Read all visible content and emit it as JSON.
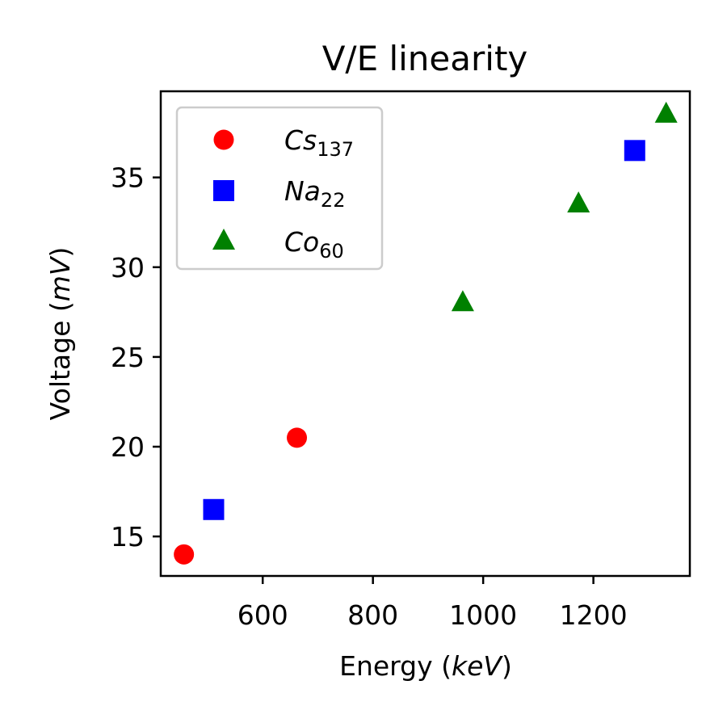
{
  "chart_data": {
    "type": "scatter",
    "title": "V/E linearity",
    "xlabel": {
      "prefix": "Energy (",
      "unit": "keV",
      "suffix": ")"
    },
    "ylabel": {
      "prefix": "Voltage (",
      "unit": "mV",
      "suffix": ")"
    },
    "xlim": [
      415,
      1375
    ],
    "ylim": [
      12.8,
      39.8
    ],
    "xticks": [
      600,
      800,
      1000,
      1200
    ],
    "xtick_labels": [
      "600",
      "800",
      "1000",
      "1200"
    ],
    "yticks": [
      15,
      20,
      25,
      30,
      35
    ],
    "ytick_labels": [
      "15",
      "20",
      "25",
      "30",
      "35"
    ],
    "grid": false,
    "legend_position": "upper-left",
    "series": [
      {
        "name": "Cs137",
        "label_main": "Cs",
        "label_sub": "137",
        "marker": "circle",
        "color": "#ff0000",
        "points": [
          {
            "x": 457,
            "y": 14.0
          },
          {
            "x": 662,
            "y": 20.5
          }
        ]
      },
      {
        "name": "Na22",
        "label_main": "Na",
        "label_sub": "22",
        "marker": "square",
        "color": "#0000ff",
        "points": [
          {
            "x": 511,
            "y": 16.5
          },
          {
            "x": 1275,
            "y": 36.5
          }
        ]
      },
      {
        "name": "Co60",
        "label_main": "Co",
        "label_sub": "60",
        "marker": "triangle",
        "color": "#008000",
        "points": [
          {
            "x": 963,
            "y": 28.0
          },
          {
            "x": 1173,
            "y": 33.5
          },
          {
            "x": 1332,
            "y": 38.5
          }
        ]
      }
    ]
  }
}
